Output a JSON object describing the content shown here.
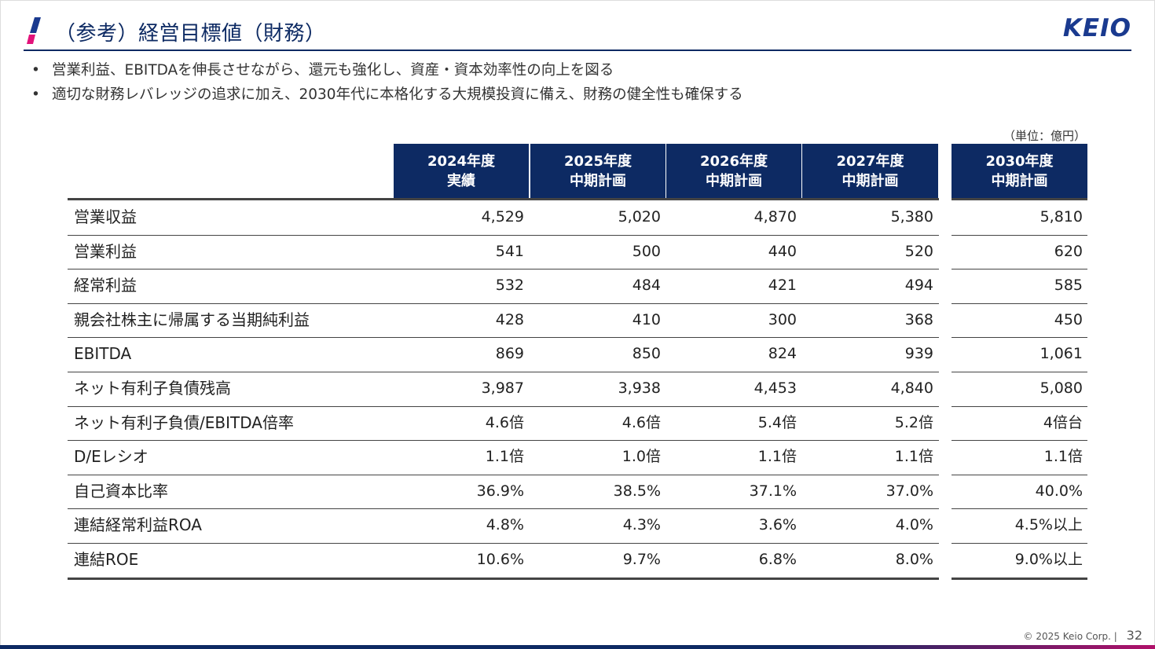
{
  "header": {
    "title": "（参考）経営目標値（財務）",
    "logo_text": "KEIO",
    "accent_colors": [
      "#e2137a",
      "#1a3a8f"
    ]
  },
  "bullets": [
    "営業利益、EBITDAを伸長させながら、還元も強化し、資産・資本効率性の向上を図る",
    "適切な財務レバレッジの追求に加え、2030年代に本格化する大規模投資に備え、財務の健全性も確保する"
  ],
  "unit_note": "（単位：億円）",
  "table": {
    "columns": [
      {
        "line1": "2024年度",
        "line2": "実績"
      },
      {
        "line1": "2025年度",
        "line2": "中期計画"
      },
      {
        "line1": "2026年度",
        "line2": "中期計画"
      },
      {
        "line1": "2027年度",
        "line2": "中期計画"
      },
      {
        "line1": "2030年度",
        "line2": "中期計画"
      }
    ],
    "rows": [
      {
        "label": "営業収益",
        "values": [
          "4,529",
          "5,020",
          "4,870",
          "5,380",
          "5,810"
        ]
      },
      {
        "label": "営業利益",
        "values": [
          "541",
          "500",
          "440",
          "520",
          "620"
        ]
      },
      {
        "label": "経常利益",
        "values": [
          "532",
          "484",
          "421",
          "494",
          "585"
        ]
      },
      {
        "label": "親会社株主に帰属する当期純利益",
        "values": [
          "428",
          "410",
          "300",
          "368",
          "450"
        ]
      },
      {
        "label": "EBITDA",
        "values": [
          "869",
          "850",
          "824",
          "939",
          "1,061"
        ]
      },
      {
        "label": "ネット有利子負債残高",
        "values": [
          "3,987",
          "3,938",
          "4,453",
          "4,840",
          "5,080"
        ]
      },
      {
        "label": "ネット有利子負債/EBITDA倍率",
        "values": [
          "4.6倍",
          "4.6倍",
          "5.4倍",
          "5.2倍",
          "4倍台"
        ]
      },
      {
        "label": "D/Eレシオ",
        "values": [
          "1.1倍",
          "1.0倍",
          "1.1倍",
          "1.1倍",
          "1.1倍"
        ]
      },
      {
        "label": "自己資本比率",
        "values": [
          "36.9%",
          "38.5%",
          "37.1%",
          "37.0%",
          "40.0%"
        ]
      },
      {
        "label": "連結経常利益ROA",
        "values": [
          "4.8%",
          "4.3%",
          "3.6%",
          "4.0%",
          "4.5%以上"
        ]
      },
      {
        "label": "連結ROE",
        "values": [
          "10.6%",
          "9.7%",
          "6.8%",
          "8.0%",
          "9.0%以上"
        ]
      }
    ]
  },
  "footer": {
    "copyright": "© 2025 Keio Corp.",
    "separator": "|",
    "page_number": "32"
  }
}
